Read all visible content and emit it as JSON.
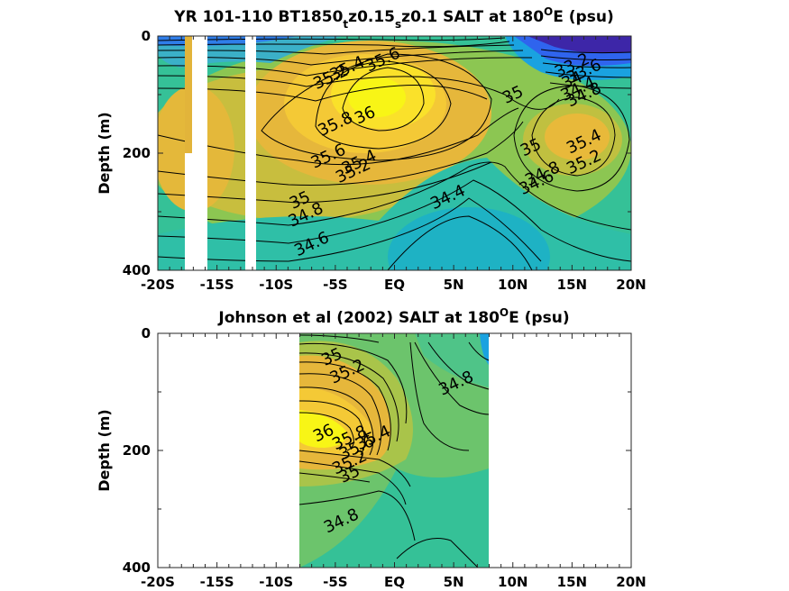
{
  "chart_data": [
    {
      "type": "heatmap",
      "title_main": "YR 101-110 BT1850",
      "title_sub1": "t",
      "title_mid": "z0.15",
      "title_sub2": "s",
      "title_end1": "z0.1 SALT at 180",
      "title_sup": "O",
      "title_end2": "E (psu)",
      "xlabel": "",
      "ylabel": "Depth (m)",
      "xticks": [
        "-20S",
        "-15S",
        "-10S",
        "-5S",
        "EQ",
        "5N",
        "10N",
        "15N",
        "20N"
      ],
      "yticks": [
        "0",
        "200",
        "400"
      ],
      "xlim": [
        -20,
        20
      ],
      "ylim": [
        0,
        400
      ],
      "colorscale": [
        "#3d26a8",
        "#2f64ee",
        "#1aa2e0",
        "#18b8b6",
        "#3cc48e",
        "#9bc64a",
        "#e7b93a",
        "#fbd232",
        "#f9f915"
      ],
      "colorlim": [
        33.6,
        36.2
      ],
      "masked_x_ranges": [
        [
          -18.1,
          -16.2
        ],
        [
          -12.3,
          -11.5
        ]
      ],
      "contour_labels": [
        {
          "text": "35.2",
          "x": -5.4,
          "y": 70
        },
        {
          "text": "35.4",
          "x": -4.0,
          "y": 55
        },
        {
          "text": "35.6",
          "x": -1.0,
          "y": 40
        },
        {
          "text": "35",
          "x": 10.0,
          "y": 100
        },
        {
          "text": "36",
          "x": -2.5,
          "y": 135
        },
        {
          "text": "35.8",
          "x": -5.0,
          "y": 150
        },
        {
          "text": "35.4",
          "x": 16.0,
          "y": 180
        },
        {
          "text": "35",
          "x": 11.5,
          "y": 190
        },
        {
          "text": "35.2",
          "x": 16.0,
          "y": 215
        },
        {
          "text": "34.8",
          "x": 12.5,
          "y": 235
        },
        {
          "text": "34.6",
          "x": 12.0,
          "y": 250
        },
        {
          "text": "35.6",
          "x": -5.6,
          "y": 205
        },
        {
          "text": "35.4",
          "x": -3.0,
          "y": 215
        },
        {
          "text": "35.2",
          "x": -3.5,
          "y": 230
        },
        {
          "text": "35",
          "x": -8.0,
          "y": 280
        },
        {
          "text": "34.8",
          "x": -7.5,
          "y": 305
        },
        {
          "text": "34.4",
          "x": 4.5,
          "y": 275
        },
        {
          "text": "34.6",
          "x": -7.0,
          "y": 355
        },
        {
          "text": "33.2",
          "x": 15.0,
          "y": 50
        },
        {
          "text": "33.6",
          "x": 16.0,
          "y": 60
        },
        {
          "text": "34",
          "x": 15.0,
          "y": 75
        },
        {
          "text": "34.4",
          "x": 15.5,
          "y": 90
        },
        {
          "text": "34.8",
          "x": 16.0,
          "y": 100
        }
      ]
    },
    {
      "type": "heatmap",
      "title_main": "Johnson et al (2002) SALT at 180",
      "title_sup": "O",
      "title_end2": "E (psu)",
      "xlabel": "",
      "ylabel": "Depth (m)",
      "xticks": [
        "-20S",
        "-15S",
        "-10S",
        "-5S",
        "EQ",
        "5N",
        "10N",
        "15N",
        "20N"
      ],
      "yticks": [
        "0",
        "200",
        "400"
      ],
      "xlim": [
        -20,
        20
      ],
      "ylim": [
        0,
        400
      ],
      "data_x_range": [
        -8,
        8
      ],
      "colorscale": [
        "#3d26a8",
        "#2f64ee",
        "#1aa2e0",
        "#18b8b6",
        "#3cc48e",
        "#9bc64a",
        "#e7b93a",
        "#fbd232",
        "#f9f915"
      ],
      "colorlim": [
        33.6,
        36.2
      ],
      "contour_labels": [
        {
          "text": "35",
          "x": -5.3,
          "y": 40
        },
        {
          "text": "35.2",
          "x": -4.0,
          "y": 65
        },
        {
          "text": "34.8",
          "x": 5.2,
          "y": 85
        },
        {
          "text": "36",
          "x": -6.0,
          "y": 170
        },
        {
          "text": "35.8",
          "x": -3.8,
          "y": 178
        },
        {
          "text": "35.6",
          "x": -3.2,
          "y": 195
        },
        {
          "text": "35.4",
          "x": -1.8,
          "y": 178
        },
        {
          "text": "35.2",
          "x": -3.8,
          "y": 220
        },
        {
          "text": "35",
          "x": -3.8,
          "y": 240
        },
        {
          "text": "34.8",
          "x": -4.5,
          "y": 320
        }
      ]
    }
  ]
}
